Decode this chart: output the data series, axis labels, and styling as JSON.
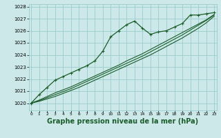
{
  "bg_color": "#cce8e8",
  "grid_color": "#99cccc",
  "line_color": "#1a5c2a",
  "title": "Graphe pression niveau de la mer (hPa)",
  "title_fontsize": 7.0,
  "x_ticks": [
    0,
    1,
    2,
    3,
    4,
    5,
    6,
    7,
    8,
    9,
    10,
    11,
    12,
    13,
    14,
    15,
    16,
    17,
    18,
    19,
    20,
    21,
    22,
    23
  ],
  "ylim": [
    1019.4,
    1028.2
  ],
  "xlim": [
    -0.3,
    23.3
  ],
  "y_ticks": [
    1020,
    1021,
    1022,
    1023,
    1024,
    1025,
    1026,
    1027,
    1028
  ],
  "series": [
    {
      "x": [
        0,
        1,
        2,
        3,
        4,
        5,
        6,
        7,
        8,
        9,
        10,
        11,
        12,
        13,
        14,
        15,
        16,
        17,
        18,
        19,
        20,
        21,
        22,
        23
      ],
      "y": [
        1020.0,
        1020.7,
        1021.3,
        1021.9,
        1022.2,
        1022.5,
        1022.8,
        1023.1,
        1023.5,
        1024.3,
        1025.5,
        1026.0,
        1026.5,
        1026.8,
        1026.2,
        1025.7,
        1025.9,
        1026.0,
        1026.3,
        1026.6,
        1027.3,
        1027.3,
        1027.4,
        1027.5
      ],
      "marker": true,
      "linewidth": 0.9
    },
    {
      "x": [
        0,
        1,
        2,
        3,
        4,
        5,
        6,
        7,
        8,
        9,
        10,
        11,
        12,
        13,
        14,
        15,
        16,
        17,
        18,
        19,
        20,
        21,
        22,
        23
      ],
      "y": [
        1020.0,
        1020.15,
        1020.35,
        1020.55,
        1020.8,
        1021.05,
        1021.3,
        1021.6,
        1021.9,
        1022.2,
        1022.5,
        1022.8,
        1023.1,
        1023.4,
        1023.7,
        1024.0,
        1024.35,
        1024.7,
        1025.05,
        1025.4,
        1025.8,
        1026.2,
        1026.65,
        1027.2
      ],
      "marker": false,
      "linewidth": 0.8
    },
    {
      "x": [
        0,
        1,
        2,
        3,
        4,
        5,
        6,
        7,
        8,
        9,
        10,
        11,
        12,
        13,
        14,
        15,
        16,
        17,
        18,
        19,
        20,
        21,
        22,
        23
      ],
      "y": [
        1020.0,
        1020.2,
        1020.45,
        1020.7,
        1020.95,
        1021.2,
        1021.5,
        1021.8,
        1022.1,
        1022.4,
        1022.7,
        1023.0,
        1023.3,
        1023.6,
        1023.9,
        1024.25,
        1024.6,
        1024.95,
        1025.3,
        1025.65,
        1026.05,
        1026.45,
        1026.85,
        1027.3
      ],
      "marker": false,
      "linewidth": 0.8
    },
    {
      "x": [
        0,
        1,
        2,
        3,
        4,
        5,
        6,
        7,
        8,
        9,
        10,
        11,
        12,
        13,
        14,
        15,
        16,
        17,
        18,
        19,
        20,
        21,
        22,
        23
      ],
      "y": [
        1020.0,
        1020.25,
        1020.55,
        1020.85,
        1021.1,
        1021.35,
        1021.65,
        1021.95,
        1022.25,
        1022.55,
        1022.85,
        1023.15,
        1023.5,
        1023.8,
        1024.1,
        1024.45,
        1024.8,
        1025.15,
        1025.5,
        1025.85,
        1026.2,
        1026.55,
        1026.9,
        1027.35
      ],
      "marker": false,
      "linewidth": 0.8
    }
  ]
}
